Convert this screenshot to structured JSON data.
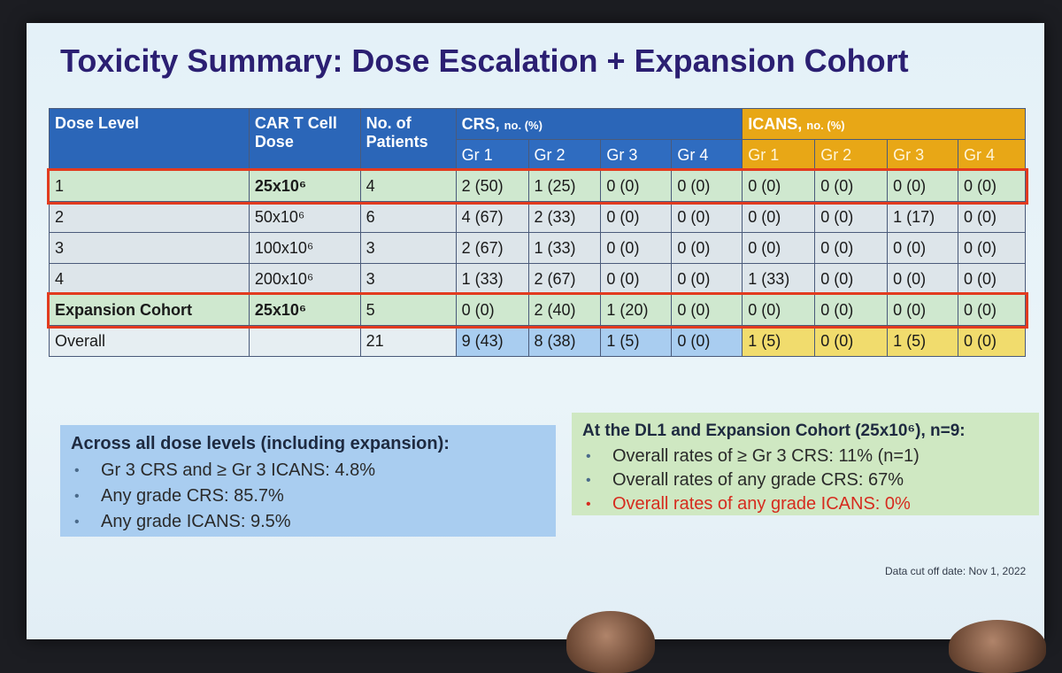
{
  "title": "Toxicity Summary: Dose Escalation + Expansion Cohort",
  "headers": {
    "dose_level": "Dose Level",
    "car_t": "CAR T Cell Dose",
    "patients": "No. of Patients",
    "crs": "CRS,",
    "crs_unit": "no. (%)",
    "icans": "ICANS,",
    "icans_unit": "no. (%)",
    "grades": [
      "Gr 1",
      "Gr 2",
      "Gr 3",
      "Gr 4"
    ]
  },
  "rows": [
    {
      "level": "1",
      "dose": "25x10⁶",
      "n": "4",
      "crs": [
        "2 (50)",
        "1 (25)",
        "0 (0)",
        "0 (0)"
      ],
      "icans": [
        "0 (0)",
        "0 (0)",
        "0 (0)",
        "0 (0)"
      ]
    },
    {
      "level": "2",
      "dose": "50x10⁶",
      "n": "6",
      "crs": [
        "4 (67)",
        "2 (33)",
        "0 (0)",
        "0 (0)"
      ],
      "icans": [
        "0 (0)",
        "0 (0)",
        "1 (17)",
        "0 (0)"
      ]
    },
    {
      "level": "3",
      "dose": "100x10⁶",
      "n": "3",
      "crs": [
        "2 (67)",
        "1 (33)",
        "0 (0)",
        "0 (0)"
      ],
      "icans": [
        "0 (0)",
        "0 (0)",
        "0 (0)",
        "0 (0)"
      ]
    },
    {
      "level": "4",
      "dose": "200x10⁶",
      "n": "3",
      "crs": [
        "1 (33)",
        "2 (67)",
        "0 (0)",
        "0 (0)"
      ],
      "icans": [
        "1 (33)",
        "0 (0)",
        "0 (0)",
        "0 (0)"
      ]
    },
    {
      "level": "Expansion Cohort",
      "dose": "25x10⁶",
      "n": "5",
      "crs": [
        "0 (0)",
        "2 (40)",
        "1 (20)",
        "0 (0)"
      ],
      "icans": [
        "0 (0)",
        "0 (0)",
        "0 (0)",
        "0 (0)"
      ]
    },
    {
      "level": "Overall",
      "dose": "",
      "n": "21",
      "crs": [
        "9 (43)",
        "8 (38)",
        "1 (5)",
        "0 (0)"
      ],
      "icans": [
        "1 (5)",
        "0 (0)",
        "1 (5)",
        "0 (0)"
      ]
    }
  ],
  "across_box": {
    "title": "Across all dose levels (including expansion):",
    "items": [
      "Gr 3 CRS and ≥ Gr 3 ICANS: 4.8%",
      "Any grade CRS: 85.7%",
      "Any grade ICANS: 9.5%"
    ]
  },
  "dl1_box": {
    "title": "At the DL1 and Expansion Cohort (25x10⁶), n=9:",
    "items": [
      "Overall rates of ≥ Gr 3 CRS: 11% (n=1)",
      "Overall rates of any grade CRS: 67%",
      "Overall rates of any grade ICANS: 0%"
    ]
  },
  "cutoff": "Data cut off date: Nov 1, 2022",
  "colors": {
    "title": "#2b1f72",
    "crs_header": "#2b66b8",
    "icans_header": "#e8a716",
    "highlight_border": "#e23b1f",
    "highlight_row": "#cfe8cf",
    "red_text": "#d62b1e"
  }
}
